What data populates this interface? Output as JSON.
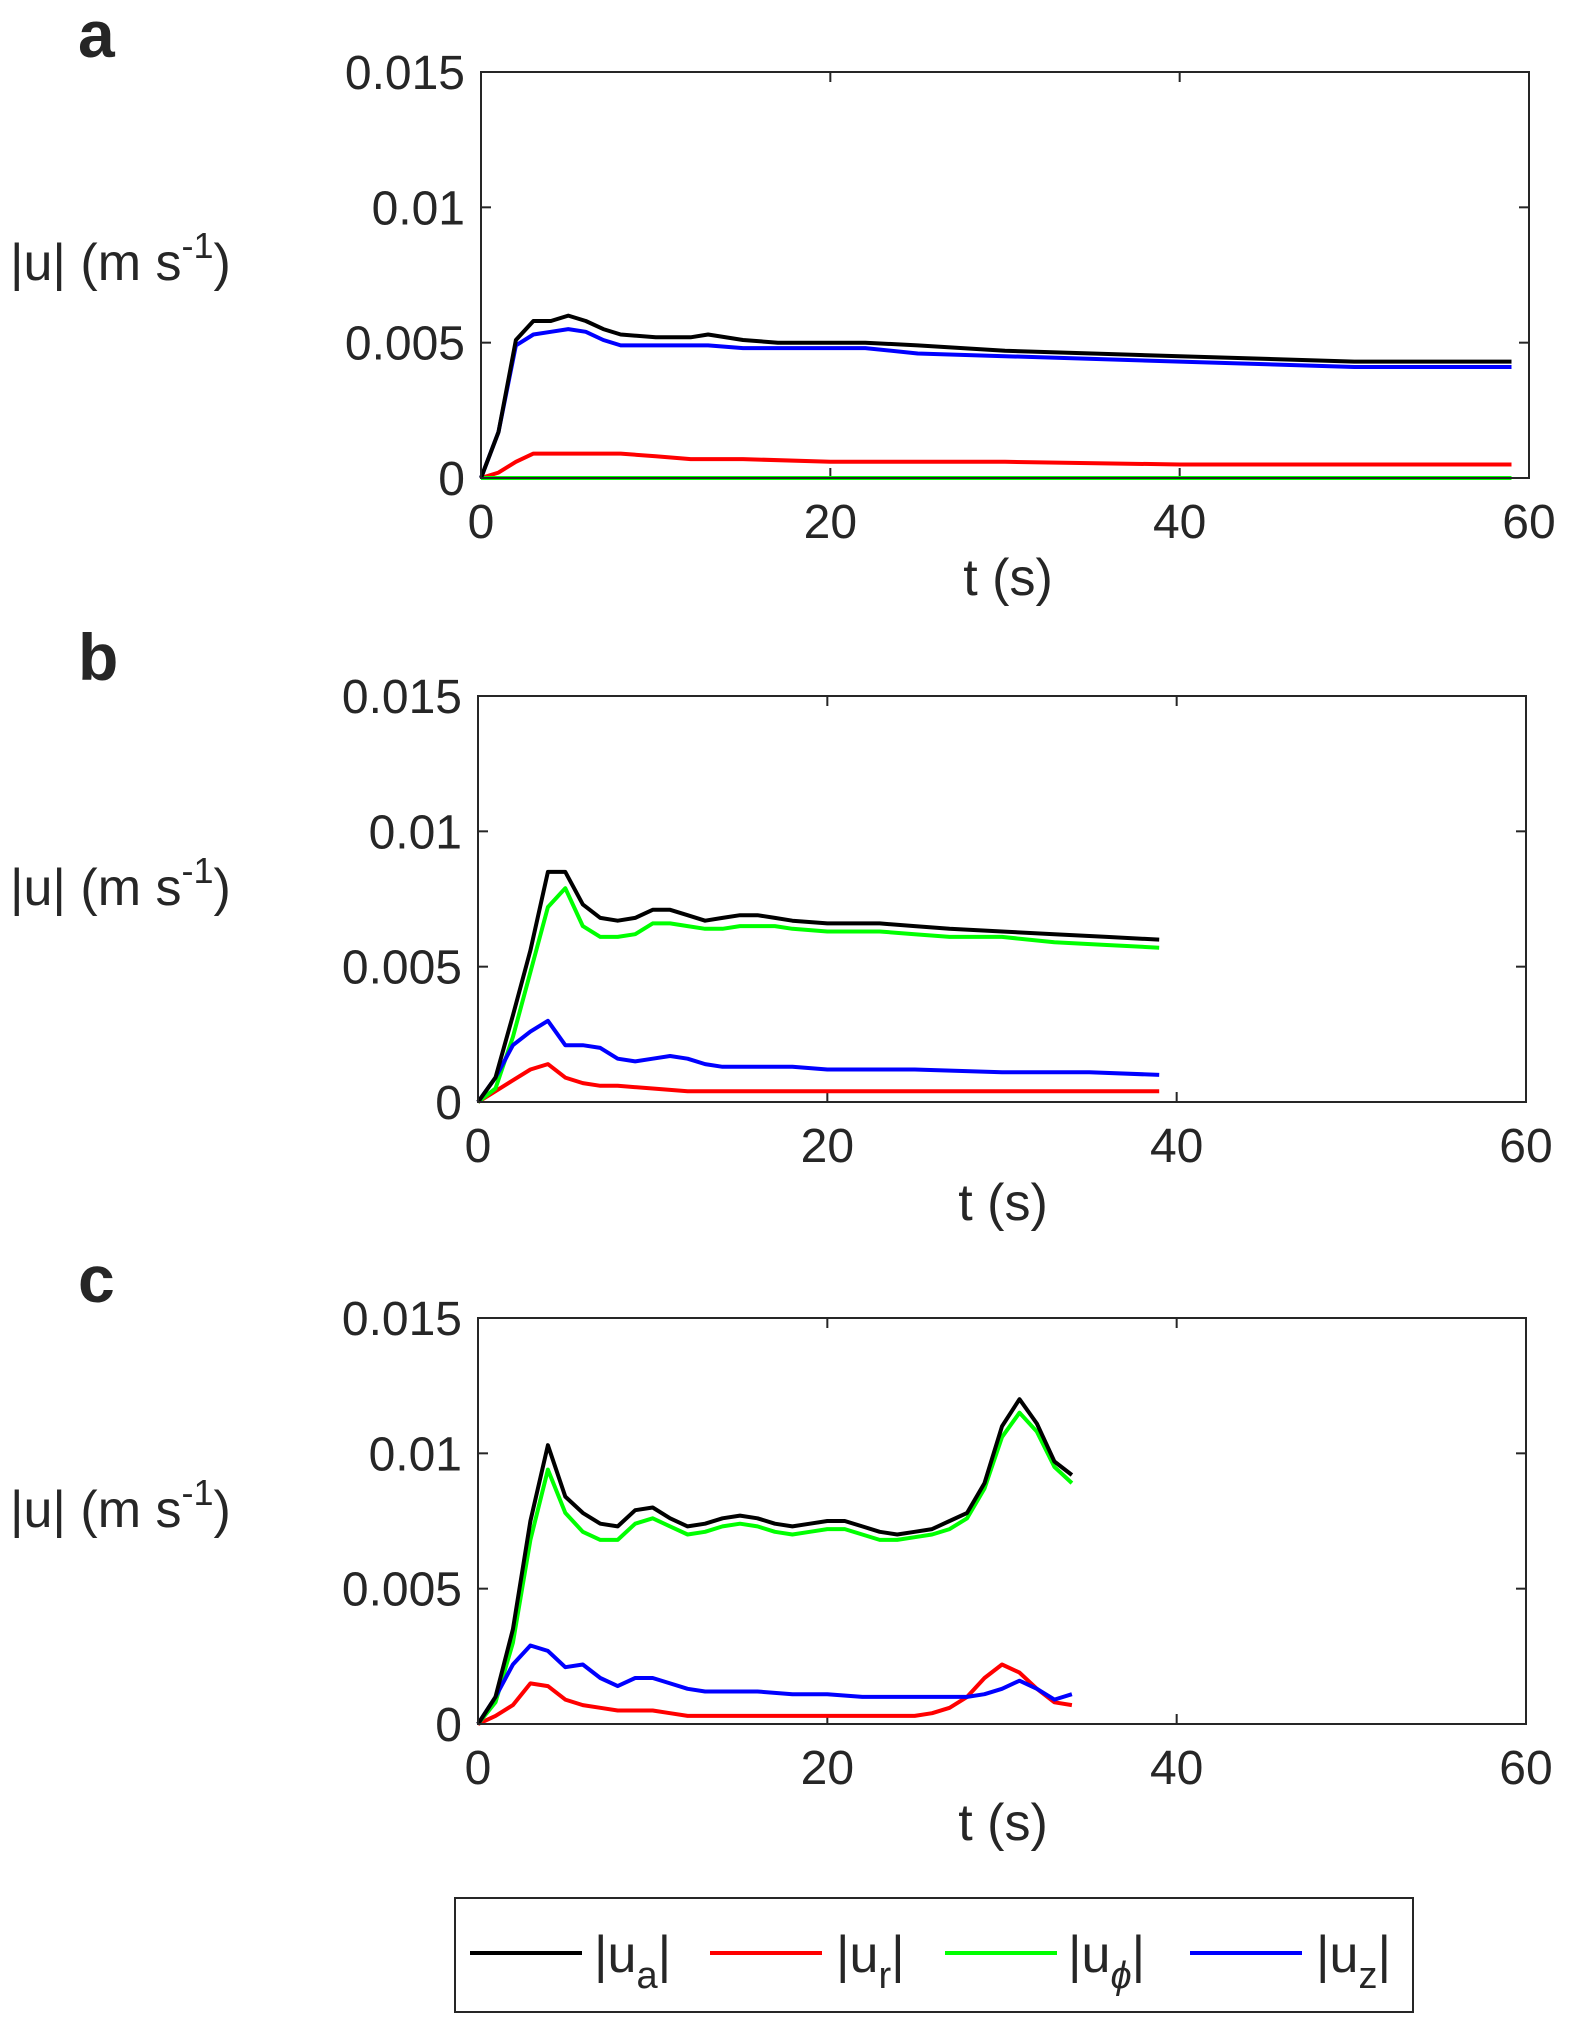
{
  "chart_data": [
    {
      "type": "line",
      "panel_label": "a",
      "xlabel": "t (s)",
      "ylabel": {
        "base": "|u| (m s",
        "sup": "-1",
        "close": ")"
      },
      "xlim": [
        0,
        60
      ],
      "ylim": [
        0,
        0.015
      ],
      "xticks": [
        "0",
        "20",
        "40",
        "60"
      ],
      "yticks": [
        "0",
        "0.005",
        "0.01",
        "0.015"
      ],
      "grid": false,
      "series": [
        {
          "key": "ua",
          "x": [
            0,
            1,
            2,
            3,
            4,
            5,
            6,
            7,
            8,
            10,
            12,
            13,
            15,
            17,
            20,
            22,
            25,
            30,
            35,
            40,
            45,
            50,
            55,
            59
          ],
          "y": [
            0,
            0.0017,
            0.0051,
            0.0058,
            0.0058,
            0.006,
            0.0058,
            0.0055,
            0.0053,
            0.0052,
            0.0052,
            0.0053,
            0.0051,
            0.005,
            0.005,
            0.005,
            0.0049,
            0.0047,
            0.0046,
            0.0045,
            0.0044,
            0.0043,
            0.0043,
            0.0043
          ]
        },
        {
          "key": "ur",
          "x": [
            0,
            1,
            2,
            3,
            4,
            5,
            6,
            8,
            10,
            12,
            15,
            20,
            25,
            30,
            40,
            50,
            59
          ],
          "y": [
            0,
            0.0002,
            0.0006,
            0.0009,
            0.0009,
            0.0009,
            0.0009,
            0.0009,
            0.0008,
            0.0007,
            0.0007,
            0.0006,
            0.0006,
            0.0006,
            0.0005,
            0.0005,
            0.0005
          ]
        },
        {
          "key": "uphi",
          "x": [
            0,
            59
          ],
          "y": [
            0,
            0
          ]
        },
        {
          "key": "uz",
          "x": [
            0,
            1,
            2,
            3,
            4,
            5,
            6,
            7,
            8,
            10,
            12,
            13,
            15,
            17,
            20,
            22,
            25,
            30,
            35,
            40,
            45,
            50,
            55,
            59
          ],
          "y": [
            0,
            0.0017,
            0.0049,
            0.0053,
            0.0054,
            0.0055,
            0.0054,
            0.0051,
            0.0049,
            0.0049,
            0.0049,
            0.0049,
            0.0048,
            0.0048,
            0.0048,
            0.0048,
            0.0046,
            0.0045,
            0.0044,
            0.0043,
            0.0042,
            0.0041,
            0.0041,
            0.0041
          ]
        }
      ]
    },
    {
      "type": "line",
      "panel_label": "b",
      "xlabel": "t (s)",
      "ylabel": {
        "base": "|u| (m s",
        "sup": "-1",
        "close": ")"
      },
      "xlim": [
        0,
        60
      ],
      "ylim": [
        0,
        0.015
      ],
      "xticks": [
        "0",
        "20",
        "40",
        "60"
      ],
      "yticks": [
        "0",
        "0.005",
        "0.01",
        "0.015"
      ],
      "grid": false,
      "series": [
        {
          "key": "ua",
          "x": [
            0,
            1,
            2,
            3,
            4,
            5,
            6,
            7,
            8,
            9,
            10,
            11,
            12,
            13,
            14,
            15,
            16,
            17,
            18,
            20,
            22,
            23,
            25,
            27,
            30,
            33,
            36,
            39
          ],
          "y": [
            0,
            0.0009,
            0.0032,
            0.0056,
            0.0085,
            0.0085,
            0.0073,
            0.0068,
            0.0067,
            0.0068,
            0.0071,
            0.0071,
            0.0069,
            0.0067,
            0.0068,
            0.0069,
            0.0069,
            0.0068,
            0.0067,
            0.0066,
            0.0066,
            0.0066,
            0.0065,
            0.0064,
            0.0063,
            0.0062,
            0.0061,
            0.006
          ]
        },
        {
          "key": "ur",
          "x": [
            0,
            1,
            2,
            3,
            4,
            5,
            6,
            7,
            8,
            10,
            12,
            14,
            16,
            20,
            25,
            30,
            35,
            39
          ],
          "y": [
            0,
            0.0004,
            0.0008,
            0.0012,
            0.0014,
            0.0009,
            0.0007,
            0.0006,
            0.0006,
            0.0005,
            0.0004,
            0.0004,
            0.0004,
            0.0004,
            0.0004,
            0.0004,
            0.0004,
            0.0004
          ]
        },
        {
          "key": "uphi",
          "x": [
            0,
            1,
            2,
            3,
            4,
            5,
            6,
            7,
            8,
            9,
            10,
            11,
            12,
            13,
            14,
            15,
            16,
            17,
            18,
            20,
            22,
            23,
            25,
            27,
            30,
            33,
            36,
            39
          ],
          "y": [
            0,
            0.0005,
            0.0024,
            0.0048,
            0.0072,
            0.0079,
            0.0065,
            0.0061,
            0.0061,
            0.0062,
            0.0066,
            0.0066,
            0.0065,
            0.0064,
            0.0064,
            0.0065,
            0.0065,
            0.0065,
            0.0064,
            0.0063,
            0.0063,
            0.0063,
            0.0062,
            0.0061,
            0.0061,
            0.0059,
            0.0058,
            0.0057
          ]
        },
        {
          "key": "uz",
          "x": [
            0,
            1,
            2,
            3,
            4,
            5,
            6,
            7,
            8,
            9,
            10,
            11,
            12,
            13,
            14,
            16,
            18,
            20,
            25,
            30,
            35,
            39
          ],
          "y": [
            0,
            0.0009,
            0.0021,
            0.0026,
            0.003,
            0.0021,
            0.0021,
            0.002,
            0.0016,
            0.0015,
            0.0016,
            0.0017,
            0.0016,
            0.0014,
            0.0013,
            0.0013,
            0.0013,
            0.0012,
            0.0012,
            0.0011,
            0.0011,
            0.001
          ]
        }
      ]
    },
    {
      "type": "line",
      "panel_label": "c",
      "xlabel": "t (s)",
      "ylabel": {
        "base": "|u| (m s",
        "sup": "-1",
        "close": ")"
      },
      "xlim": [
        0,
        60
      ],
      "ylim": [
        0,
        0.015
      ],
      "xticks": [
        "0",
        "20",
        "40",
        "60"
      ],
      "yticks": [
        "0",
        "0.005",
        "0.01",
        "0.015"
      ],
      "grid": false,
      "series": [
        {
          "key": "ua",
          "x": [
            0,
            1,
            2,
            3,
            4,
            5,
            6,
            7,
            8,
            9,
            10,
            11,
            12,
            13,
            14,
            15,
            16,
            17,
            18,
            19,
            20,
            21,
            22,
            23,
            24,
            25,
            26,
            27,
            28,
            29,
            30,
            31,
            32,
            33,
            34
          ],
          "y": [
            0,
            0.001,
            0.0035,
            0.0075,
            0.0103,
            0.0084,
            0.0078,
            0.0074,
            0.0073,
            0.0079,
            0.008,
            0.0076,
            0.0073,
            0.0074,
            0.0076,
            0.0077,
            0.0076,
            0.0074,
            0.0073,
            0.0074,
            0.0075,
            0.0075,
            0.0073,
            0.0071,
            0.007,
            0.0071,
            0.0072,
            0.0075,
            0.0078,
            0.0089,
            0.011,
            0.012,
            0.0111,
            0.0097,
            0.0092
          ]
        },
        {
          "key": "ur",
          "x": [
            0,
            1,
            2,
            3,
            4,
            5,
            6,
            7,
            8,
            9,
            10,
            11,
            12,
            13,
            14,
            15,
            16,
            17,
            18,
            20,
            22,
            24,
            25,
            26,
            27,
            28,
            29,
            30,
            31,
            32,
            33,
            34
          ],
          "y": [
            0,
            0.0003,
            0.0007,
            0.0015,
            0.0014,
            0.0009,
            0.0007,
            0.0006,
            0.0005,
            0.0005,
            0.0005,
            0.0004,
            0.0003,
            0.0003,
            0.0003,
            0.0003,
            0.0003,
            0.0003,
            0.0003,
            0.0003,
            0.0003,
            0.0003,
            0.0003,
            0.0004,
            0.0006,
            0.001,
            0.0017,
            0.0022,
            0.0019,
            0.0013,
            0.0008,
            0.0007
          ]
        },
        {
          "key": "uphi",
          "x": [
            0,
            1,
            2,
            3,
            4,
            5,
            6,
            7,
            8,
            9,
            10,
            11,
            12,
            13,
            14,
            15,
            16,
            17,
            18,
            19,
            20,
            21,
            22,
            23,
            24,
            25,
            26,
            27,
            28,
            29,
            30,
            31,
            32,
            33,
            34
          ],
          "y": [
            0,
            0.0008,
            0.003,
            0.0068,
            0.0094,
            0.0078,
            0.0071,
            0.0068,
            0.0068,
            0.0074,
            0.0076,
            0.0073,
            0.007,
            0.0071,
            0.0073,
            0.0074,
            0.0073,
            0.0071,
            0.007,
            0.0071,
            0.0072,
            0.0072,
            0.007,
            0.0068,
            0.0068,
            0.0069,
            0.007,
            0.0072,
            0.0076,
            0.0087,
            0.0106,
            0.0115,
            0.0108,
            0.0095,
            0.0089
          ]
        },
        {
          "key": "uz",
          "x": [
            0,
            1,
            2,
            3,
            4,
            5,
            6,
            7,
            8,
            9,
            10,
            11,
            12,
            13,
            14,
            16,
            18,
            20,
            22,
            24,
            26,
            28,
            29,
            30,
            31,
            32,
            33,
            34
          ],
          "y": [
            0,
            0.001,
            0.0022,
            0.0029,
            0.0027,
            0.0021,
            0.0022,
            0.0017,
            0.0014,
            0.0017,
            0.0017,
            0.0015,
            0.0013,
            0.0012,
            0.0012,
            0.0012,
            0.0011,
            0.0011,
            0.001,
            0.001,
            0.001,
            0.001,
            0.0011,
            0.0013,
            0.0016,
            0.0013,
            0.0009,
            0.0011
          ]
        }
      ]
    }
  ],
  "legend": {
    "placement": "bottom",
    "entries": [
      {
        "key": "ua",
        "label": "|u",
        "sub": "a",
        "close": "|",
        "color": "#000000"
      },
      {
        "key": "ur",
        "label": "|u",
        "sub": "r",
        "close": "|",
        "color": "#ff0000"
      },
      {
        "key": "uphi",
        "label": "|u",
        "sub": "ϕ",
        "close": "|",
        "color": "#00ff00"
      },
      {
        "key": "uz",
        "label": "|u",
        "sub": "z",
        "close": "|",
        "color": "#0000ff"
      }
    ]
  }
}
